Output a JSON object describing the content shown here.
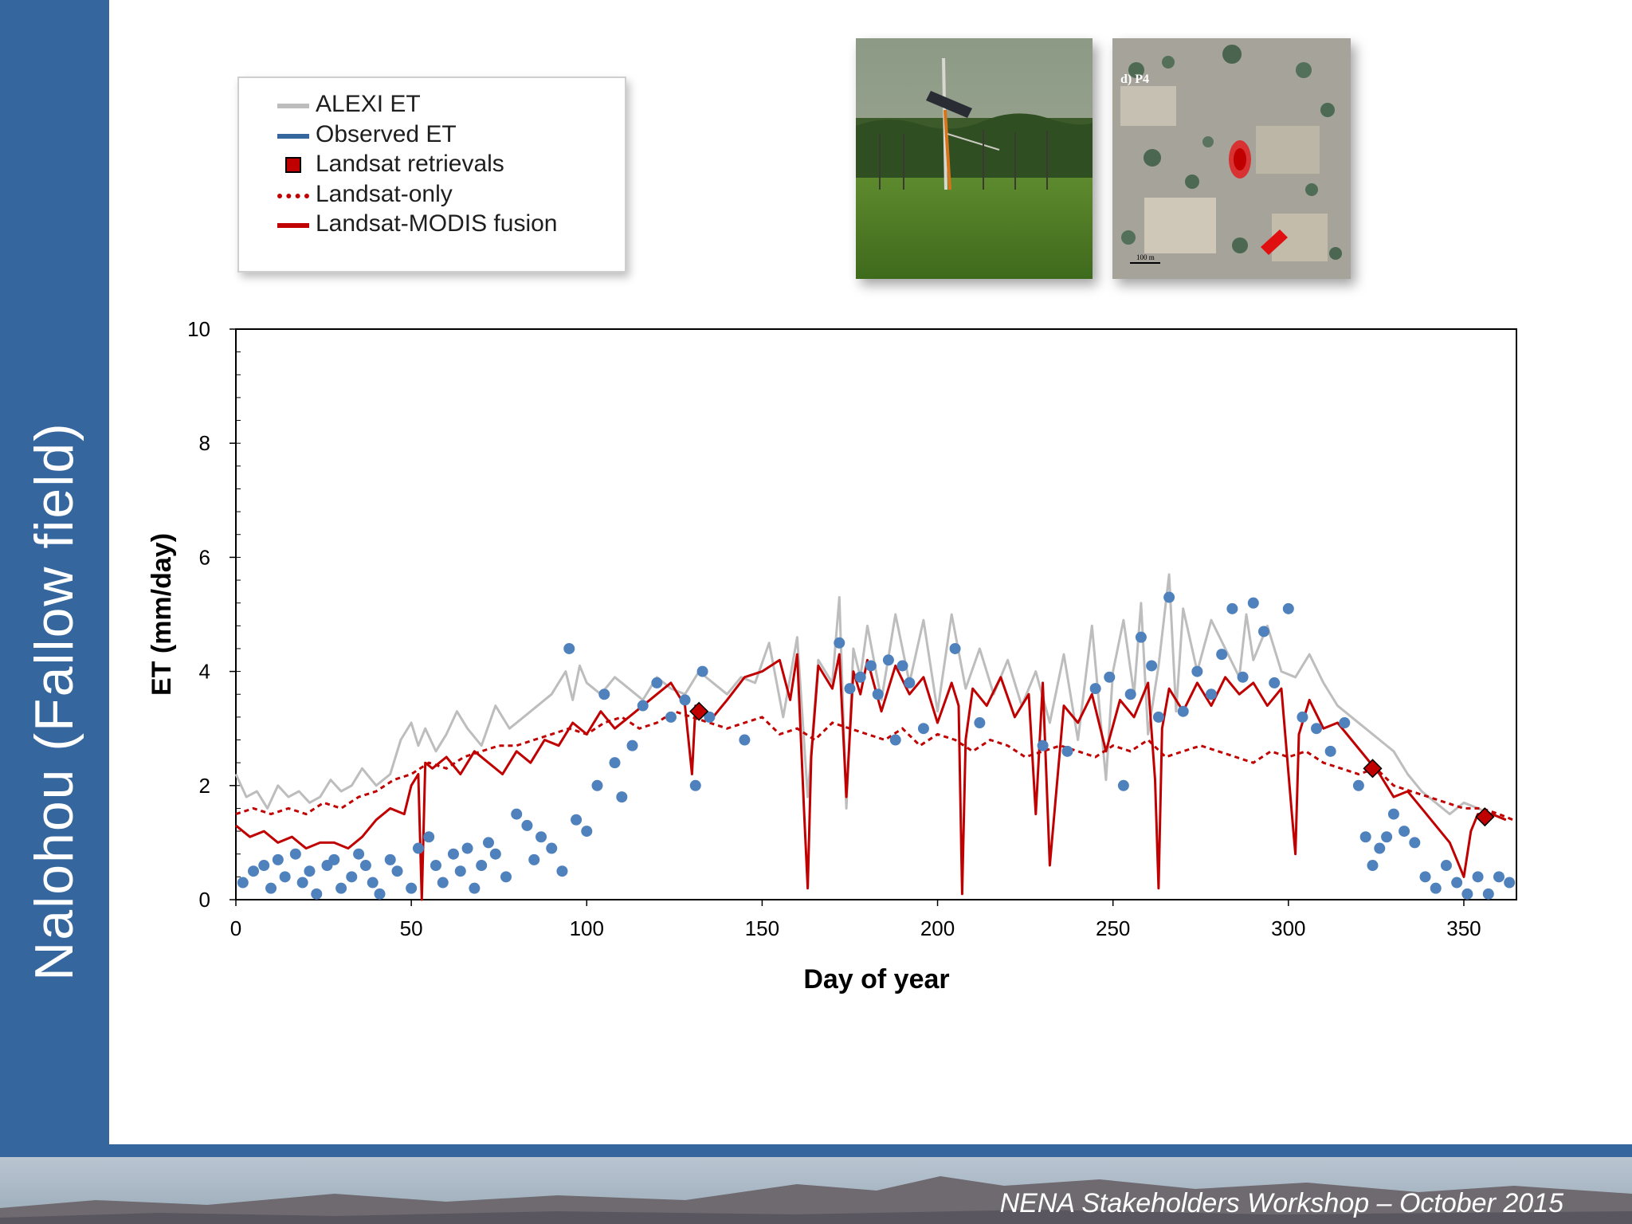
{
  "sidebar": {
    "title": "Nalohou (Fallow field)"
  },
  "footer": {
    "text": "NENA Stakeholders Workshop – October 2015"
  },
  "photos": [
    {
      "name": "tower-photo"
    },
    {
      "name": "satellite-map",
      "panel_label": "d)  P4",
      "scale_label": "100 m"
    }
  ],
  "colors": {
    "alexi": "#bdbdbd",
    "observed": "#4f81bd",
    "landsat": "#c00000",
    "sidebar": "#35679e"
  },
  "legend": [
    {
      "label": "ALEXI ET",
      "symbol": "line",
      "color": "#bdbdbd"
    },
    {
      "label": "Observed ET",
      "symbol": "line",
      "color": "#35679e"
    },
    {
      "label": "Landsat retrievals",
      "symbol": "square",
      "color": "#c00000"
    },
    {
      "label": "Landsat-only",
      "symbol": "dotted",
      "color": "#c00000"
    },
    {
      "label": "Landsat-MODIS fusion",
      "symbol": "line",
      "color": "#c00000"
    }
  ],
  "chart_data": {
    "type": "line",
    "xlabel": "Day of year",
    "ylabel": "ET (mm/day)",
    "xlim": [
      0,
      365
    ],
    "ylim": [
      0,
      10
    ],
    "xticks": [
      0,
      50,
      100,
      150,
      200,
      250,
      300,
      350
    ],
    "yticks": [
      0,
      2,
      4,
      6,
      8,
      10
    ],
    "grid": false,
    "legend_position": "top-left, outside plot area",
    "series": [
      {
        "name": "ALEXI ET",
        "style": "line",
        "color": "#bdbdbd",
        "x": [
          0,
          3,
          6,
          9,
          12,
          15,
          18,
          21,
          24,
          27,
          30,
          33,
          36,
          40,
          44,
          47,
          50,
          52,
          54,
          57,
          60,
          63,
          66,
          70,
          74,
          78,
          82,
          86,
          90,
          94,
          96,
          98,
          100,
          104,
          108,
          112,
          116,
          120,
          124,
          128,
          132,
          136,
          140,
          144,
          148,
          152,
          156,
          160,
          163,
          166,
          170,
          172,
          174,
          176,
          178,
          180,
          184,
          188,
          192,
          196,
          200,
          204,
          208,
          212,
          216,
          220,
          224,
          228,
          232,
          236,
          240,
          244,
          248,
          250,
          253,
          256,
          258,
          260,
          263,
          266,
          268,
          270,
          274,
          278,
          282,
          286,
          288,
          290,
          294,
          298,
          302,
          306,
          310,
          314,
          318,
          322,
          326,
          330,
          334,
          338,
          342,
          346,
          350,
          354,
          358,
          362
        ],
        "y": [
          2.2,
          1.8,
          1.9,
          1.6,
          2.0,
          1.8,
          1.9,
          1.7,
          1.8,
          2.1,
          1.9,
          2.0,
          2.3,
          2.0,
          2.2,
          2.8,
          3.1,
          2.7,
          3.0,
          2.6,
          2.9,
          3.3,
          3.0,
          2.7,
          3.4,
          3.0,
          3.2,
          3.4,
          3.6,
          4.0,
          3.5,
          4.1,
          3.8,
          3.6,
          3.9,
          3.7,
          3.5,
          3.9,
          3.7,
          3.6,
          4.0,
          3.8,
          3.6,
          3.9,
          3.8,
          4.5,
          3.2,
          4.6,
          1.8,
          4.2,
          3.8,
          5.3,
          1.6,
          4.4,
          3.9,
          4.8,
          3.5,
          5.0,
          3.8,
          4.9,
          3.3,
          5.0,
          3.7,
          4.4,
          3.6,
          4.2,
          3.4,
          4.0,
          3.1,
          4.3,
          2.8,
          4.8,
          2.1,
          4.0,
          4.9,
          3.6,
          5.2,
          2.9,
          4.1,
          5.7,
          3.3,
          5.1,
          4.0,
          4.9,
          4.4,
          3.9,
          5.0,
          4.2,
          4.8,
          4.0,
          3.9,
          4.3,
          3.8,
          3.4,
          3.2,
          3.0,
          2.8,
          2.6,
          2.2,
          1.9,
          1.7,
          1.5,
          1.7,
          1.6,
          1.5,
          1.4
        ]
      },
      {
        "name": "Observed ET",
        "style": "markers",
        "color": "#4f81bd",
        "x": [
          2,
          5,
          8,
          10,
          12,
          14,
          17,
          19,
          21,
          23,
          26,
          28,
          30,
          33,
          35,
          37,
          39,
          41,
          44,
          46,
          50,
          52,
          55,
          57,
          59,
          62,
          64,
          66,
          68,
          70,
          72,
          74,
          77,
          80,
          83,
          85,
          87,
          90,
          93,
          95,
          97,
          100,
          103,
          105,
          108,
          110,
          113,
          116,
          120,
          124,
          128,
          131,
          133,
          135,
          145,
          172,
          175,
          178,
          181,
          183,
          186,
          188,
          190,
          192,
          196,
          205,
          212,
          230,
          237,
          245,
          249,
          253,
          255,
          258,
          261,
          263,
          266,
          270,
          274,
          278,
          281,
          284,
          287,
          290,
          293,
          296,
          300,
          304,
          308,
          312,
          316,
          320,
          322,
          324,
          326,
          328,
          330,
          333,
          336,
          339,
          342,
          345,
          348,
          351,
          354,
          357,
          360,
          363
        ],
        "y": [
          0.3,
          0.5,
          0.6,
          0.2,
          0.7,
          0.4,
          0.8,
          0.3,
          0.5,
          0.1,
          0.6,
          0.7,
          0.2,
          0.4,
          0.8,
          0.6,
          0.3,
          0.1,
          0.7,
          0.5,
          0.2,
          0.9,
          1.1,
          0.6,
          0.3,
          0.8,
          0.5,
          0.9,
          0.2,
          0.6,
          1.0,
          0.8,
          0.4,
          1.5,
          1.3,
          0.7,
          1.1,
          0.9,
          0.5,
          4.4,
          1.4,
          1.2,
          2.0,
          3.6,
          2.4,
          1.8,
          2.7,
          3.4,
          3.8,
          3.2,
          3.5,
          2.0,
          4.0,
          3.2,
          2.8,
          4.5,
          3.7,
          3.9,
          4.1,
          3.6,
          4.2,
          2.8,
          4.1,
          3.8,
          3.0,
          4.4,
          3.1,
          2.7,
          2.6,
          3.7,
          3.9,
          2.0,
          3.6,
          4.6,
          4.1,
          3.2,
          5.3,
          3.3,
          4.0,
          3.6,
          4.3,
          5.1,
          3.9,
          5.2,
          4.7,
          3.8,
          5.1,
          3.2,
          3.0,
          2.6,
          3.1,
          2.0,
          1.1,
          0.6,
          0.9,
          1.1,
          1.5,
          1.2,
          1.0,
          0.4,
          0.2,
          0.6,
          0.3,
          0.1,
          0.4,
          0.1,
          0.4,
          0.3
        ]
      },
      {
        "name": "Landsat retrievals",
        "style": "markers",
        "color": "#c00000",
        "x": [
          132,
          324,
          356
        ],
        "y": [
          3.3,
          2.3,
          1.45
        ]
      },
      {
        "name": "Landsat-only",
        "style": "dotted-line",
        "color": "#c00000",
        "x": [
          0,
          5,
          10,
          15,
          20,
          25,
          30,
          35,
          40,
          45,
          50,
          55,
          60,
          65,
          70,
          75,
          80,
          85,
          90,
          95,
          100,
          105,
          110,
          115,
          120,
          125,
          130,
          135,
          140,
          145,
          150,
          155,
          160,
          165,
          170,
          175,
          180,
          185,
          190,
          195,
          200,
          205,
          210,
          215,
          220,
          225,
          230,
          235,
          240,
          245,
          250,
          255,
          260,
          265,
          270,
          275,
          280,
          285,
          290,
          295,
          300,
          305,
          310,
          315,
          320,
          325,
          330,
          335,
          340,
          345,
          350,
          355,
          360,
          364
        ],
        "y": [
          1.5,
          1.6,
          1.5,
          1.6,
          1.5,
          1.7,
          1.6,
          1.8,
          1.9,
          2.1,
          2.2,
          2.4,
          2.3,
          2.5,
          2.6,
          2.7,
          2.7,
          2.8,
          2.9,
          3.0,
          2.9,
          3.1,
          3.2,
          3.0,
          3.1,
          3.3,
          3.2,
          3.1,
          3.0,
          3.1,
          3.2,
          2.9,
          3.0,
          2.8,
          3.1,
          3.0,
          2.9,
          2.8,
          3.0,
          2.7,
          2.9,
          2.8,
          2.6,
          2.8,
          2.7,
          2.5,
          2.6,
          2.7,
          2.6,
          2.5,
          2.7,
          2.6,
          2.8,
          2.5,
          2.6,
          2.7,
          2.6,
          2.5,
          2.4,
          2.6,
          2.5,
          2.6,
          2.4,
          2.3,
          2.2,
          2.3,
          2.0,
          1.9,
          1.8,
          1.7,
          1.6,
          1.6,
          1.5,
          1.4
        ]
      },
      {
        "name": "Landsat-MODIS fusion",
        "style": "line",
        "color": "#c00000",
        "x": [
          0,
          4,
          8,
          12,
          16,
          20,
          24,
          28,
          32,
          36,
          40,
          44,
          48,
          50,
          52,
          53,
          54,
          56,
          60,
          64,
          68,
          72,
          76,
          80,
          84,
          88,
          92,
          96,
          100,
          104,
          108,
          112,
          116,
          120,
          124,
          128,
          130,
          131,
          133,
          136,
          140,
          145,
          150,
          155,
          158,
          160,
          162,
          163,
          164,
          166,
          170,
          172,
          174,
          176,
          178,
          180,
          184,
          188,
          192,
          196,
          200,
          204,
          206,
          207,
          208,
          210,
          214,
          218,
          222,
          226,
          228,
          230,
          232,
          236,
          240,
          244,
          248,
          252,
          256,
          260,
          262,
          263,
          264,
          266,
          270,
          274,
          278,
          282,
          286,
          290,
          294,
          298,
          301,
          302,
          303,
          306,
          310,
          314,
          318,
          322,
          326,
          330,
          334,
          338,
          342,
          346,
          348,
          350,
          352,
          354,
          358,
          362
        ],
        "y": [
          1.3,
          1.1,
          1.2,
          1.0,
          1.1,
          0.9,
          1.0,
          1.0,
          0.9,
          1.1,
          1.4,
          1.6,
          1.5,
          2.0,
          2.2,
          0.0,
          2.4,
          2.3,
          2.5,
          2.2,
          2.6,
          2.4,
          2.2,
          2.6,
          2.4,
          2.8,
          2.7,
          3.1,
          2.9,
          3.3,
          3.0,
          3.2,
          3.4,
          3.6,
          3.8,
          3.4,
          2.2,
          3.4,
          3.3,
          3.2,
          3.5,
          3.9,
          4.0,
          4.2,
          3.5,
          4.3,
          1.5,
          0.2,
          2.5,
          4.1,
          3.7,
          4.3,
          1.8,
          4.0,
          3.6,
          4.2,
          3.3,
          4.1,
          3.6,
          3.9,
          3.1,
          3.8,
          3.4,
          0.1,
          2.8,
          3.7,
          3.4,
          3.9,
          3.2,
          3.6,
          1.5,
          3.8,
          0.6,
          3.4,
          3.1,
          3.6,
          2.6,
          3.5,
          3.2,
          3.8,
          2.1,
          0.2,
          3.0,
          3.7,
          3.3,
          3.8,
          3.4,
          3.9,
          3.6,
          3.8,
          3.4,
          3.7,
          1.5,
          0.8,
          2.9,
          3.5,
          3.0,
          3.1,
          2.8,
          2.5,
          2.2,
          1.8,
          1.9,
          1.6,
          1.3,
          1.0,
          0.7,
          0.4,
          1.2,
          1.5,
          1.5,
          1.4
        ]
      }
    ]
  }
}
